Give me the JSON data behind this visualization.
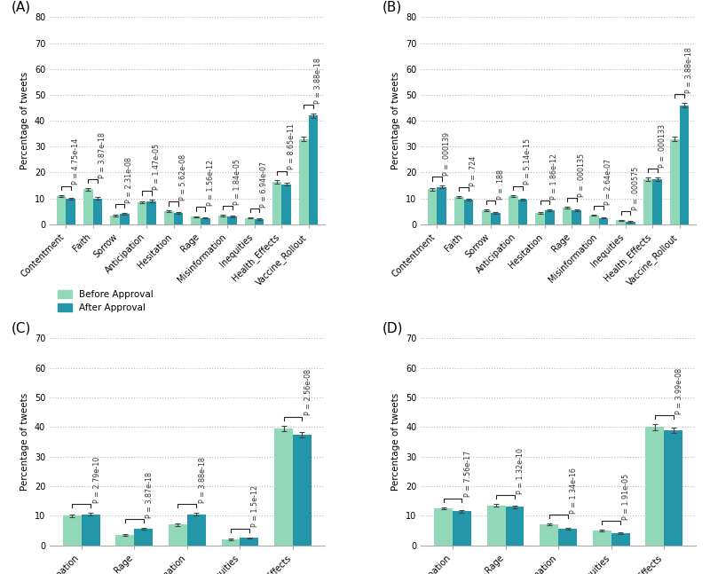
{
  "panels": {
    "A": {
      "label": "(A)",
      "categories": [
        "Contentment",
        "Faith",
        "Sorrow",
        "Anticipation",
        "Hesitation",
        "Rage",
        "Misinformation",
        "Inequities",
        "Health_Effects",
        "Vaccine_Rollout"
      ],
      "before": [
        11.0,
        13.5,
        3.5,
        8.5,
        5.0,
        3.0,
        3.5,
        2.5,
        16.5,
        33.0
      ],
      "after": [
        10.0,
        10.0,
        4.0,
        9.0,
        4.5,
        2.5,
        3.0,
        2.0,
        15.5,
        42.0
      ],
      "before_err": [
        0.4,
        0.5,
        0.3,
        0.4,
        0.3,
        0.2,
        0.3,
        0.2,
        0.7,
        1.0
      ],
      "after_err": [
        0.3,
        0.4,
        0.3,
        0.4,
        0.3,
        0.2,
        0.3,
        0.2,
        0.6,
        0.8
      ],
      "pvalues": [
        "P = 4.75e-14",
        "P = 3.87e-18",
        "P = 2.31e-08",
        "P = 1.47e-05",
        "P = 5.62e-08",
        "P = 1.56e-12",
        "P = 1.84e-05",
        "P = 6.94e-07",
        "P = 8.65e-11",
        "P = 3.88e-18"
      ],
      "ylim": [
        0,
        80
      ],
      "yticks": [
        0,
        10,
        20,
        30,
        40,
        50,
        60,
        70,
        80
      ],
      "ylabel": "Percentage of tweets"
    },
    "B": {
      "label": "(B)",
      "categories": [
        "Contentment",
        "Faith",
        "Sorrow",
        "Anticipation",
        "Hesitation",
        "Rage",
        "Misinformation",
        "Inequities",
        "Health_Effects",
        "Vaccine_Rollout"
      ],
      "before": [
        13.5,
        10.5,
        5.5,
        11.0,
        4.5,
        6.5,
        3.5,
        1.5,
        17.5,
        33.0
      ],
      "after": [
        14.5,
        9.5,
        4.5,
        9.5,
        5.5,
        5.5,
        2.5,
        1.0,
        17.5,
        46.0
      ],
      "before_err": [
        0.5,
        0.4,
        0.3,
        0.4,
        0.3,
        0.3,
        0.2,
        0.2,
        0.6,
        1.0
      ],
      "after_err": [
        0.4,
        0.4,
        0.3,
        0.4,
        0.3,
        0.3,
        0.2,
        0.2,
        0.6,
        0.9
      ],
      "pvalues": [
        "P = .000139",
        "P = .724",
        "P = .188",
        "P = 5.14e-15",
        "P = 1.86e-12",
        "P = .000135",
        "P = 2.64e-07",
        "P = .000575",
        "P = .000133",
        "P = 3.88e-18"
      ],
      "ylim": [
        0,
        80
      ],
      "yticks": [
        0,
        10,
        20,
        30,
        40,
        50,
        60,
        70,
        80
      ],
      "ylabel": "Percentage of tweets"
    },
    "C": {
      "label": "(C)",
      "categories": [
        "Anticipation",
        "Rage",
        "Misinformation",
        "Inequities",
        "Health_Effects"
      ],
      "before": [
        10.0,
        3.5,
        7.0,
        2.0,
        39.5
      ],
      "after": [
        10.5,
        5.5,
        10.5,
        2.5,
        37.5
      ],
      "before_err": [
        0.4,
        0.3,
        0.4,
        0.2,
        1.0
      ],
      "after_err": [
        0.4,
        0.3,
        0.4,
        0.2,
        0.9
      ],
      "pvalues": [
        "P = 2.79e-10",
        "P = 3.87e-18",
        "P = 3.88e-18",
        "P = 1.5e-12",
        "P = 2.56e-08"
      ],
      "ylim": [
        0,
        70
      ],
      "yticks": [
        0,
        10,
        20,
        30,
        40,
        50,
        60,
        70
      ],
      "ylabel": "Percentage of tweets"
    },
    "D": {
      "label": "(D)",
      "categories": [
        "Anticipation",
        "Rage",
        "Misinformation",
        "Inequities",
        "Health_Effects"
      ],
      "before": [
        12.5,
        13.5,
        7.0,
        5.0,
        40.0
      ],
      "after": [
        11.5,
        13.0,
        5.5,
        4.0,
        39.0
      ],
      "before_err": [
        0.4,
        0.5,
        0.3,
        0.3,
        1.0
      ],
      "after_err": [
        0.4,
        0.5,
        0.3,
        0.3,
        0.9
      ],
      "pvalues": [
        "P = 7.56e-17",
        "P = 1.32e-10",
        "P = 1.34e-16",
        "P = 1.91e-05",
        "P = 3.99e-08"
      ],
      "ylim": [
        0,
        70
      ],
      "yticks": [
        0,
        10,
        20,
        30,
        40,
        50,
        60,
        70
      ],
      "ylabel": "Percentage of tweets"
    }
  },
  "color_before": "#90d8b8",
  "color_after": "#2496aa",
  "legend_labels": [
    "Before Approval",
    "After Approval"
  ],
  "bar_width": 0.35,
  "background_color": "#ffffff",
  "grid_color": "#bbbbbb",
  "tick_fontsize": 7,
  "label_fontsize": 7.5,
  "pvalue_fontsize": 5.8,
  "panel_label_fontsize": 11
}
